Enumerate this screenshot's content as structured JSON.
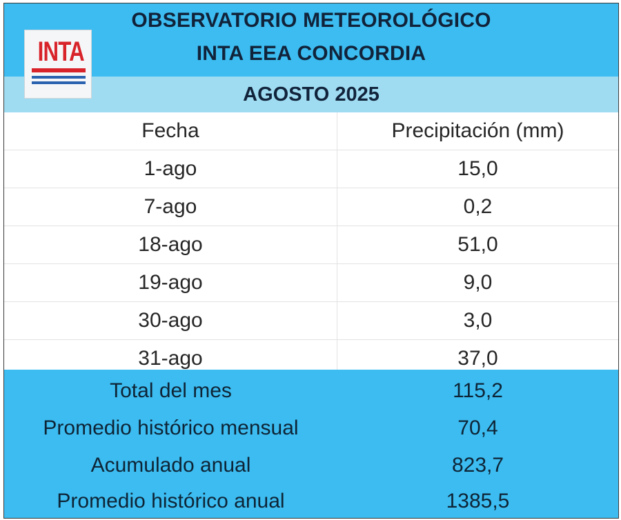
{
  "header": {
    "title_line1": "OBSERVATORIO METEOROLÓGICO",
    "title_line2": "INTA EEA  CONCORDIA",
    "month": "AGOSTO 2025",
    "logo_text": "INTA"
  },
  "colors": {
    "header_blue": "#3cbcf0",
    "band_light_blue": "#9fdcf2",
    "logo_red": "#d8232a",
    "logo_blue": "#2a62b0"
  },
  "table": {
    "columns": [
      "Fecha",
      "Precipitación (mm)"
    ],
    "rows": [
      {
        "fecha": "1-ago",
        "precip": "15,0"
      },
      {
        "fecha": "7-ago",
        "precip": "0,2"
      },
      {
        "fecha": "18-ago",
        "precip": "51,0"
      },
      {
        "fecha": "19-ago",
        "precip": "9,0"
      },
      {
        "fecha": "30-ago",
        "precip": "3,0"
      },
      {
        "fecha": "31-ago",
        "precip": "37,0"
      }
    ]
  },
  "summary": [
    {
      "label": "Total del mes",
      "value": "115,2"
    },
    {
      "label": "Promedio histórico mensual",
      "value": "70,4"
    },
    {
      "label": "Acumulado anual",
      "value": "823,7"
    },
    {
      "label": "Promedio histórico anual",
      "value": "1385,5"
    }
  ]
}
